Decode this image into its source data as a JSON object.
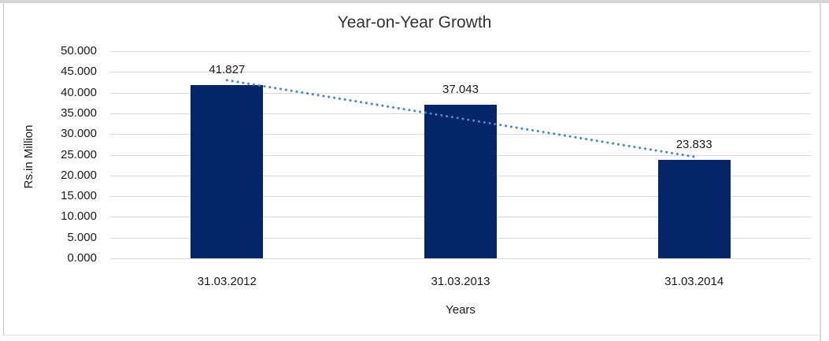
{
  "chart_data": {
    "type": "bar",
    "title": "Year-on-Year Growth",
    "xlabel": "Years",
    "ylabel": "Rs.in Million",
    "categories": [
      "31.03.2012",
      "31.03.2013",
      "31.03.2014"
    ],
    "values": [
      41.827,
      37.043,
      23.833
    ],
    "data_labels": [
      "41.827",
      "37.043",
      "23.833"
    ],
    "y_ticks": [
      "50.000",
      "45.000",
      "40.000",
      "35.000",
      "30.000",
      "25.000",
      "20.000",
      "15.000",
      "10.000",
      "5.000",
      "0.000"
    ],
    "ylim": [
      0,
      50
    ],
    "grid": true,
    "legend": "none",
    "bar_color": "#042567",
    "gridline_color": "#d9d9d9",
    "trendline": {
      "style": "dotted",
      "color": "#4a86c8",
      "start_value": 43.0,
      "end_value": 24.4
    }
  }
}
